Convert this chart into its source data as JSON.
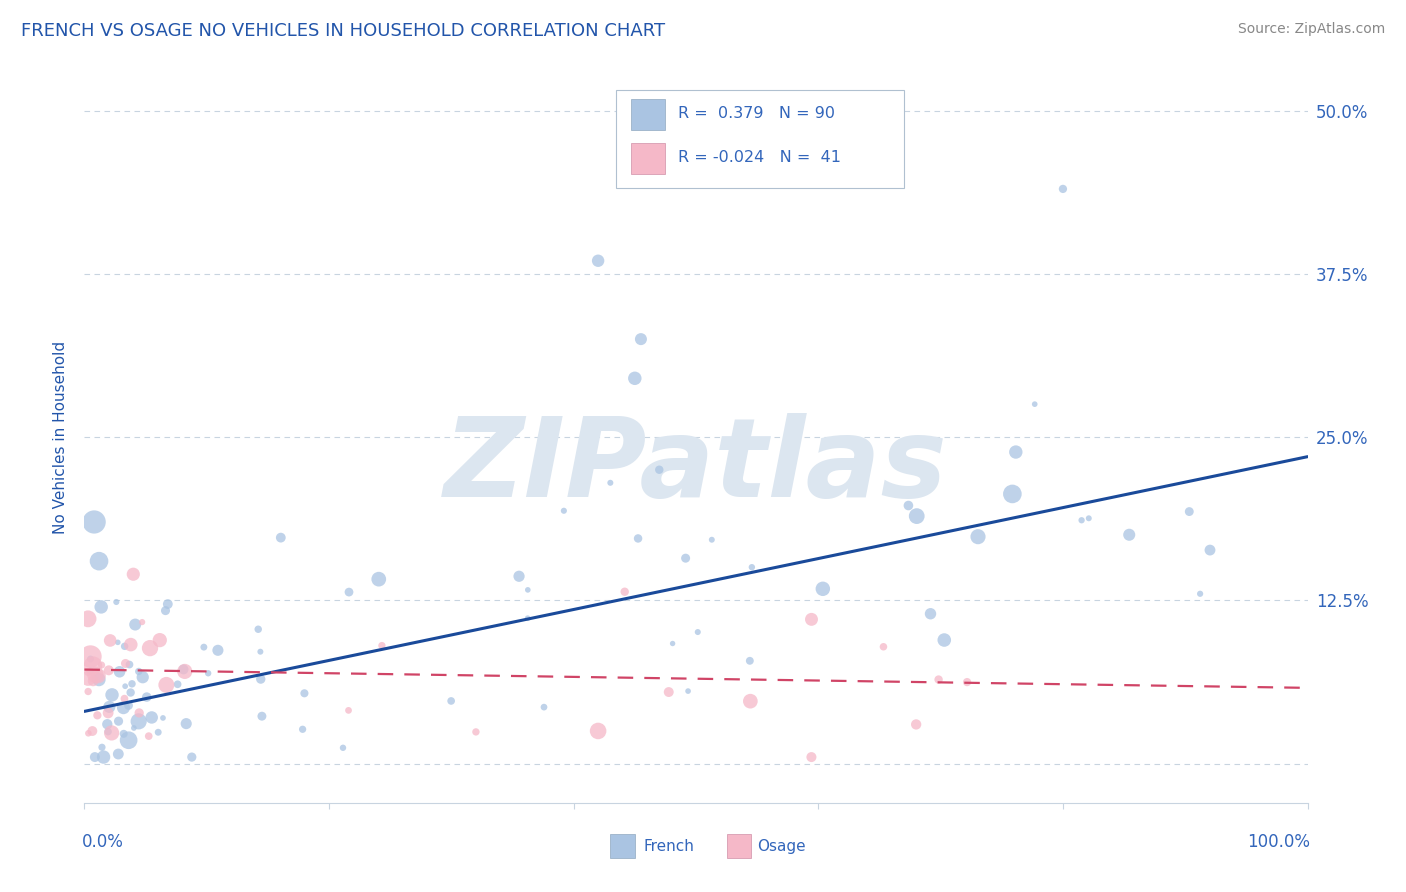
{
  "title": "FRENCH VS OSAGE NO VEHICLES IN HOUSEHOLD CORRELATION CHART",
  "source": "Source: ZipAtlas.com",
  "ylabel": "No Vehicles in Household",
  "french_R": 0.379,
  "french_N": 90,
  "osage_R": -0.024,
  "osage_N": 41,
  "french_color": "#aac4e2",
  "french_line_color": "#1a4a9a",
  "osage_color": "#f5b8c8",
  "osage_line_color": "#d04466",
  "background_color": "#ffffff",
  "watermark": "ZIPatlas",
  "watermark_color": "#dce6f0",
  "title_color": "#2255aa",
  "source_color": "#888888",
  "title_fontsize": 13,
  "axis_label_color": "#2255aa",
  "tick_color": "#3366bb",
  "grid_color": "#c8d4e0",
  "xlim": [
    0.0,
    1.0
  ],
  "ylim": [
    -0.03,
    0.53
  ],
  "ytick_vals": [
    0.0,
    0.125,
    0.25,
    0.375,
    0.5
  ],
  "ytick_labels": [
    "",
    "12.5%",
    "25.0%",
    "37.5%",
    "50.0%"
  ],
  "french_line_y0": 0.04,
  "french_line_y1": 0.235,
  "osage_line_y0": 0.072,
  "osage_line_y1": 0.058
}
